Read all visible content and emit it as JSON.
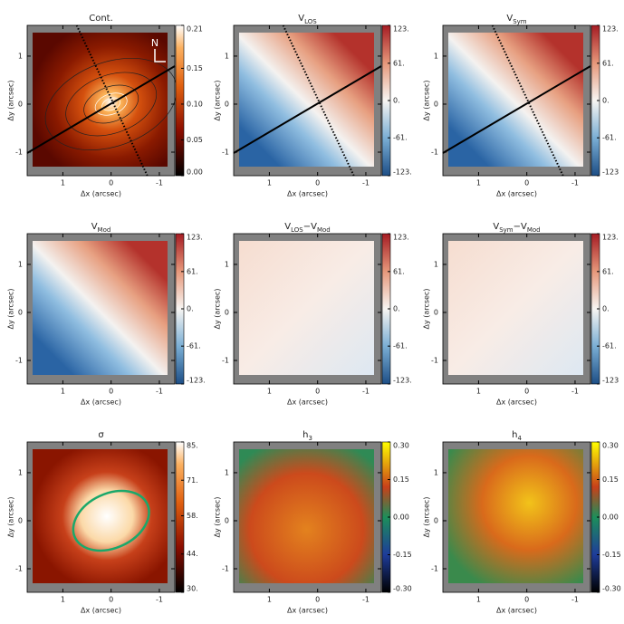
{
  "chart_data": [
    {
      "type": "image",
      "title": [
        {
          "text": "Cont."
        }
      ],
      "xlabel": "Δx (arcsec)",
      "ylabel": "Δy (arcsec)",
      "annotation": "N",
      "xlim": [
        1.74,
        -1.32
      ],
      "xticks": [
        1,
        0,
        -1
      ],
      "ylim": [
        -1.49,
        1.64
      ],
      "yticks": [
        -1,
        0,
        1
      ],
      "colormap": "heat",
      "colorbar": {
        "lim": [
          0,
          0.21
        ],
        "ticks": [
          {
            "value": 0,
            "label": "0.00"
          },
          {
            "value": 0.05,
            "label": "0.05"
          },
          {
            "value": 0.1,
            "label": "0.10"
          },
          {
            "value": 0.15,
            "label": "0.15"
          },
          0.21
        ]
      }
    },
    {
      "type": "image",
      "title": [
        {
          "text": "V"
        },
        {
          "sub": "LOS"
        }
      ],
      "xlabel": "Δx (arcsec)",
      "ylabel": "Δy (arcsec)",
      "xlim": [
        1.74,
        -1.32
      ],
      "xticks": [
        1,
        0,
        -1
      ],
      "ylim": [
        -1.49,
        1.64
      ],
      "yticks": [
        -1,
        0,
        1
      ],
      "colormap": "diverging",
      "colorbar": {
        "lim": [
          -123,
          123
        ],
        "ticks": [
          {
            "value": -123,
            "label": "-123."
          },
          {
            "value": -61,
            "label": "-61."
          },
          {
            "value": 0,
            "label": "0."
          },
          {
            "value": 61,
            "label": "61."
          },
          {
            "value": 123,
            "label": "123."
          }
        ]
      }
    },
    {
      "type": "image",
      "title": [
        {
          "text": "V"
        },
        {
          "sub": "Sym"
        }
      ],
      "xlabel": "Δx (arcsec)",
      "ylabel": "Δy (arcsec)",
      "xlim": [
        1.74,
        -1.32
      ],
      "xticks": [
        1,
        0,
        -1
      ],
      "ylim": [
        -1.49,
        1.64
      ],
      "yticks": [
        -1,
        0,
        1
      ],
      "colormap": "diverging",
      "colorbar": {
        "lim": [
          -123,
          123
        ],
        "ticks": [
          {
            "value": -123,
            "label": "-123"
          },
          {
            "value": -61,
            "label": "-61."
          },
          {
            "value": 0,
            "label": "0."
          },
          {
            "value": 61,
            "label": "61."
          },
          {
            "value": 123,
            "label": "123."
          }
        ]
      }
    },
    {
      "type": "image",
      "title": [
        {
          "text": "V"
        },
        {
          "sub": "Mod"
        }
      ],
      "xlabel": "Δx (arcsec)",
      "ylabel": "Δy (arcsec)",
      "xlim": [
        1.74,
        -1.32
      ],
      "xticks": [
        1,
        0,
        -1
      ],
      "ylim": [
        -1.49,
        1.64
      ],
      "yticks": [
        -1,
        0,
        1
      ],
      "colormap": "diverging",
      "colorbar": {
        "lim": [
          -123,
          123
        ],
        "ticks": [
          {
            "value": -123,
            "label": "-123."
          },
          {
            "value": -61,
            "label": "-61."
          },
          {
            "value": 0,
            "label": "0."
          },
          {
            "value": 61,
            "label": "61."
          },
          {
            "value": 123,
            "label": "123."
          }
        ]
      }
    },
    {
      "type": "image",
      "title": [
        {
          "text": "V"
        },
        {
          "sub": "LOS"
        },
        {
          "text": "−V"
        },
        {
          "sub": "Mod"
        }
      ],
      "xlabel": "Δx (arcsec)",
      "ylabel": "Δy (arcsec)",
      "xlim": [
        1.74,
        -1.32
      ],
      "xticks": [
        1,
        0,
        -1
      ],
      "ylim": [
        -1.49,
        1.64
      ],
      "yticks": [
        -1,
        0,
        1
      ],
      "colormap": "diverging",
      "colorbar": {
        "lim": [
          -123,
          123
        ],
        "ticks": [
          {
            "value": -123,
            "label": "-123."
          },
          {
            "value": -61,
            "label": "-61."
          },
          {
            "value": 0,
            "label": "0."
          },
          {
            "value": 61,
            "label": "61."
          },
          {
            "value": 123,
            "label": "123."
          }
        ]
      }
    },
    {
      "type": "image",
      "title": [
        {
          "text": "V"
        },
        {
          "sub": "Sym"
        },
        {
          "text": "−V"
        },
        {
          "sub": "Mod"
        }
      ],
      "xlabel": "Δx (arcsec)",
      "ylabel": "Δy (arcsec)",
      "xlim": [
        1.74,
        -1.32
      ],
      "xticks": [
        1,
        0,
        -1
      ],
      "ylim": [
        -1.49,
        1.64
      ],
      "yticks": [
        -1,
        0,
        1
      ],
      "colormap": "diverging",
      "colorbar": {
        "lim": [
          -123,
          123
        ],
        "ticks": [
          {
            "value": -123,
            "label": "-123"
          },
          {
            "value": -61,
            "label": "-61."
          },
          {
            "value": 0,
            "label": "0."
          },
          {
            "value": 61,
            "label": "61."
          },
          {
            "value": 123,
            "label": "123."
          }
        ]
      }
    },
    {
      "type": "image",
      "title": [
        {
          "text": "σ"
        }
      ],
      "xlabel": "Δx (arcsec)",
      "ylabel": "Δy (arcsec)",
      "xlim": [
        1.74,
        -1.32
      ],
      "xticks": [
        1,
        0,
        -1
      ],
      "ylim": [
        -1.49,
        1.64
      ],
      "yticks": [
        -1,
        0,
        1
      ],
      "colormap": "heat",
      "colorbar": {
        "lim": [
          30,
          85
        ],
        "ticks": [
          {
            "value": 30,
            "label": "30."
          },
          {
            "value": 44,
            "label": "44."
          },
          {
            "value": 58,
            "label": "58."
          },
          {
            "value": 71,
            "label": "71."
          },
          {
            "value": 85,
            "label": "85."
          }
        ]
      }
    },
    {
      "type": "image",
      "title": [
        {
          "text": "h"
        },
        {
          "sub": "3"
        }
      ],
      "xlabel": "Δx (arcsec)",
      "ylabel": "Δy (arcsec)",
      "xlim": [
        1.74,
        -1.32
      ],
      "xticks": [
        1,
        0,
        -1
      ],
      "ylim": [
        -1.49,
        1.64
      ],
      "yticks": [
        -1,
        0,
        1
      ],
      "colormap": "moment",
      "colorbar": {
        "lim": [
          -0.3,
          0.3
        ],
        "ticks": [
          {
            "value": -0.3,
            "label": "-0.30"
          },
          {
            "value": -0.15,
            "label": "-0.15"
          },
          {
            "value": 0,
            "label": "0.00"
          },
          {
            "value": 0.15,
            "label": "0.15"
          },
          {
            "value": 0.3,
            "label": "0.30"
          }
        ]
      }
    },
    {
      "type": "image",
      "title": [
        {
          "text": "h"
        },
        {
          "sub": "4"
        }
      ],
      "xlabel": "Δx (arcsec)",
      "ylabel": "Δy (arcsec)",
      "xlim": [
        1.74,
        -1.32
      ],
      "xticks": [
        1,
        0,
        -1
      ],
      "ylim": [
        -1.49,
        1.64
      ],
      "yticks": [
        -1,
        0,
        1
      ],
      "colormap": "moment",
      "colorbar": {
        "lim": [
          -0.3,
          0.3
        ],
        "ticks": [
          {
            "value": -0.3,
            "label": "-0.30"
          },
          {
            "value": -0.15,
            "label": "-0.15"
          },
          {
            "value": 0,
            "label": "0.00"
          },
          {
            "value": 0.15,
            "label": "0.15"
          },
          {
            "value": 0.3,
            "label": "0.30"
          }
        ]
      }
    }
  ]
}
